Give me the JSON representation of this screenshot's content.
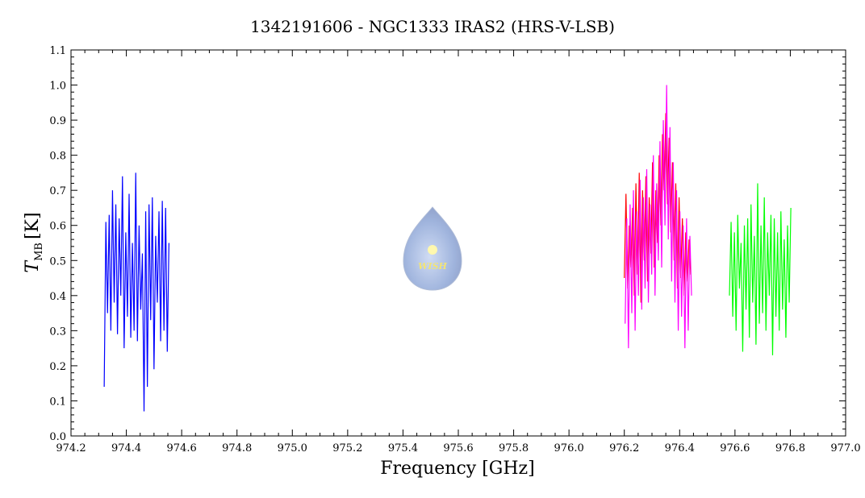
{
  "chart_data": {
    "type": "line",
    "title": "1342191606 - NGC1333 IRAS2 (HRS-V-LSB)",
    "xlabel": "Frequency [GHz]",
    "ylabel": {
      "symbol": "T",
      "subscript": "MB",
      "unit": "[K]"
    },
    "logo": "WISH",
    "xlim": [
      974.2,
      977.0
    ],
    "ylim": [
      0,
      1.1
    ],
    "xticks": [
      974.2,
      974.4,
      974.6,
      974.8,
      {
        "value": 975,
        "label": "975.0"
      },
      975.2,
      975.4,
      975.6,
      975.8,
      {
        "value": 976,
        "label": "976.0"
      },
      976.2,
      976.4,
      976.6,
      976.8,
      {
        "value": 977,
        "label": "977.0"
      }
    ],
    "yticks": [
      {
        "value": 0,
        "label": "0.0"
      },
      0.1,
      0.2,
      0.3,
      0.4,
      0.5,
      0.6,
      0.7,
      0.8,
      0.9,
      {
        "value": 1,
        "label": "1.0"
      },
      1.1
    ],
    "series": [
      {
        "color": "#0000ff",
        "x": [
          974.32,
          974.326,
          974.332,
          974.338,
          974.344,
          974.35,
          974.356,
          974.362,
          974.368,
          974.374,
          974.38,
          974.386,
          974.392,
          974.398,
          974.404,
          974.41,
          974.416,
          974.422,
          974.428,
          974.434,
          974.44,
          974.446,
          974.452,
          974.458,
          974.464,
          974.47,
          974.476,
          974.482,
          974.488,
          974.494,
          974.5,
          974.506,
          974.512,
          974.518,
          974.524,
          974.53,
          974.536,
          974.542,
          974.548,
          974.554
        ],
        "values": [
          0.14,
          0.61,
          0.35,
          0.63,
          0.3,
          0.7,
          0.38,
          0.66,
          0.29,
          0.62,
          0.4,
          0.74,
          0.25,
          0.58,
          0.34,
          0.69,
          0.28,
          0.55,
          0.3,
          0.75,
          0.27,
          0.6,
          0.36,
          0.52,
          0.07,
          0.64,
          0.14,
          0.66,
          0.33,
          0.68,
          0.19,
          0.57,
          0.38,
          0.64,
          0.27,
          0.67,
          0.3,
          0.65,
          0.24,
          0.55
        ]
      },
      {
        "color": "#ff0000",
        "x": [
          976.2,
          976.206,
          976.212,
          976.218,
          976.224,
          976.23,
          976.236,
          976.242,
          976.248,
          976.254,
          976.26,
          976.266,
          976.272,
          976.278,
          976.284,
          976.29,
          976.296,
          976.302,
          976.308,
          976.314,
          976.32,
          976.326,
          976.332,
          976.338,
          976.344,
          976.35,
          976.356,
          976.362,
          976.368,
          976.374,
          976.38,
          976.386,
          976.392,
          976.398,
          976.404,
          976.41,
          976.416,
          976.422,
          976.428,
          976.434,
          976.44
        ],
        "values": [
          0.45,
          0.69,
          0.42,
          0.6,
          0.48,
          0.65,
          0.4,
          0.72,
          0.46,
          0.75,
          0.38,
          0.7,
          0.5,
          0.74,
          0.44,
          0.68,
          0.52,
          0.78,
          0.48,
          0.7,
          0.55,
          0.8,
          0.6,
          0.86,
          0.7,
          0.92,
          0.66,
          0.85,
          0.58,
          0.78,
          0.5,
          0.72,
          0.42,
          0.68,
          0.45,
          0.62,
          0.4,
          0.58,
          0.44,
          0.56,
          0.46
        ]
      },
      {
        "color": "#ff00ff",
        "x": [
          976.203,
          976.209,
          976.215,
          976.221,
          976.227,
          976.233,
          976.239,
          976.245,
          976.251,
          976.257,
          976.263,
          976.269,
          976.275,
          976.281,
          976.287,
          976.293,
          976.299,
          976.305,
          976.311,
          976.317,
          976.323,
          976.329,
          976.335,
          976.341,
          976.347,
          976.353,
          976.359,
          976.365,
          976.371,
          976.377,
          976.383,
          976.389,
          976.395,
          976.401,
          976.407,
          976.413,
          976.419,
          976.425,
          976.431,
          976.437,
          976.443
        ],
        "values": [
          0.32,
          0.62,
          0.25,
          0.66,
          0.35,
          0.7,
          0.3,
          0.64,
          0.4,
          0.73,
          0.36,
          0.68,
          0.42,
          0.76,
          0.38,
          0.66,
          0.46,
          0.8,
          0.4,
          0.72,
          0.5,
          0.84,
          0.48,
          0.9,
          0.6,
          1.0,
          0.56,
          0.88,
          0.44,
          0.78,
          0.38,
          0.7,
          0.3,
          0.64,
          0.34,
          0.6,
          0.25,
          0.62,
          0.3,
          0.57,
          0.4
        ]
      },
      {
        "color": "#00ff00",
        "x": [
          976.58,
          976.586,
          976.592,
          976.598,
          976.604,
          976.61,
          976.616,
          976.622,
          976.628,
          976.634,
          976.64,
          976.646,
          976.652,
          976.658,
          976.664,
          976.67,
          976.676,
          976.682,
          976.688,
          976.694,
          976.7,
          976.706,
          976.712,
          976.718,
          976.724,
          976.73,
          976.736,
          976.742,
          976.748,
          976.754,
          976.76,
          976.766,
          976.772,
          976.778,
          976.784,
          976.79,
          976.796,
          976.802
        ],
        "values": [
          0.4,
          0.61,
          0.34,
          0.58,
          0.3,
          0.63,
          0.42,
          0.55,
          0.24,
          0.6,
          0.36,
          0.62,
          0.28,
          0.66,
          0.38,
          0.57,
          0.26,
          0.72,
          0.32,
          0.6,
          0.35,
          0.68,
          0.3,
          0.58,
          0.4,
          0.63,
          0.23,
          0.62,
          0.34,
          0.58,
          0.3,
          0.64,
          0.36,
          0.56,
          0.28,
          0.6,
          0.38,
          0.65
        ]
      }
    ]
  }
}
